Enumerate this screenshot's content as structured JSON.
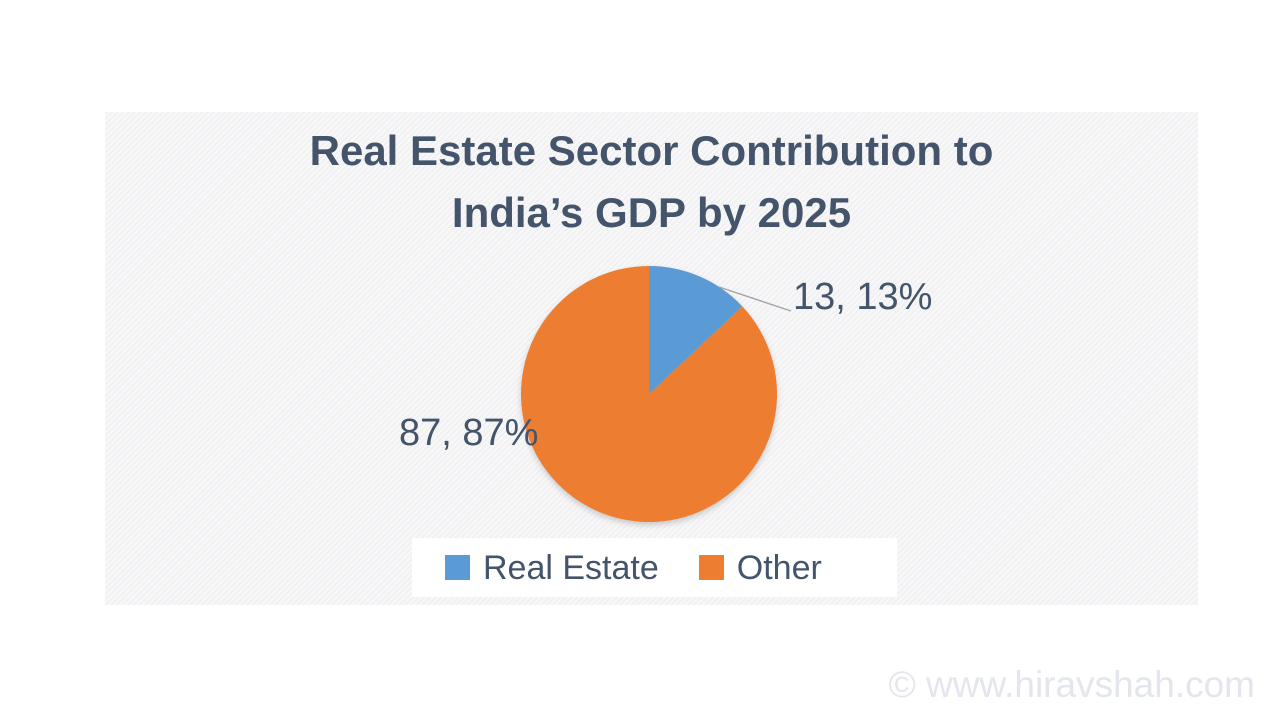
{
  "title": {
    "text": "Real Estate Sector Contribution to India’s GDP by 2025",
    "line1": "Real Estate Sector Contribution to",
    "line2": "India’s GDP by 2025",
    "color": "#44546a"
  },
  "chart_data": {
    "type": "pie",
    "title": "Real Estate Sector Contribution to India’s GDP by 2025",
    "categories": [
      "Real Estate",
      "Other"
    ],
    "values": [
      13,
      87
    ],
    "unit": "percent",
    "colors": [
      "#5b9bd5",
      "#ed7d31"
    ],
    "data_labels": [
      "13, 13%",
      "87, 87%"
    ],
    "legend_position": "bottom",
    "start_angle_deg": 0,
    "direction": "clockwise"
  },
  "watermark": {
    "text": "© www.hiravshah.com",
    "color": "#e4e6ed"
  }
}
